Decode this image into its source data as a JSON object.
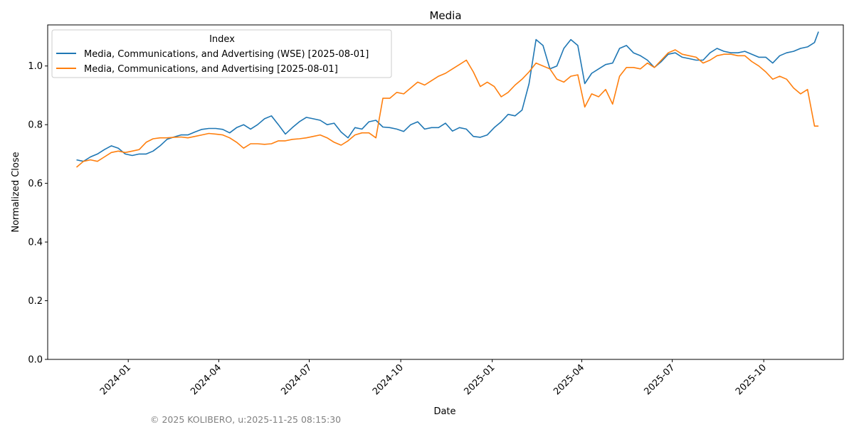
{
  "chart_data": {
    "type": "line",
    "title": "Media",
    "xlabel": "Date",
    "ylabel": "Normalized Close",
    "ylim": [
      0,
      1.14
    ],
    "xlim": [
      "2023-10-12",
      "2025-12-20"
    ],
    "grid": false,
    "legend": {
      "title": "Index",
      "placement": "top-left"
    },
    "yticks": [
      "0.0",
      "0.2",
      "0.4",
      "0.6",
      "0.8",
      "1.0"
    ],
    "xticks": [
      "2024-01",
      "2024-04",
      "2024-07",
      "2024-10",
      "2025-01",
      "2025-04",
      "2025-07",
      "2025-10"
    ],
    "x": [
      "2023-11-10",
      "2023-11-17",
      "2023-11-24",
      "2023-12-01",
      "2023-12-08",
      "2023-12-15",
      "2023-12-22",
      "2023-12-29",
      "2024-01-05",
      "2024-01-12",
      "2024-01-19",
      "2024-01-26",
      "2024-02-02",
      "2024-02-09",
      "2024-02-16",
      "2024-02-23",
      "2024-03-01",
      "2024-03-08",
      "2024-03-15",
      "2024-03-22",
      "2024-03-29",
      "2024-04-05",
      "2024-04-12",
      "2024-04-19",
      "2024-04-26",
      "2024-05-03",
      "2024-05-10",
      "2024-05-17",
      "2024-05-24",
      "2024-05-31",
      "2024-06-07",
      "2024-06-14",
      "2024-06-21",
      "2024-06-28",
      "2024-07-05",
      "2024-07-12",
      "2024-07-19",
      "2024-07-26",
      "2024-08-02",
      "2024-08-09",
      "2024-08-16",
      "2024-08-23",
      "2024-08-30",
      "2024-09-06",
      "2024-09-13",
      "2024-09-20",
      "2024-09-27",
      "2024-10-04",
      "2024-10-11",
      "2024-10-18",
      "2024-10-25",
      "2024-11-01",
      "2024-11-08",
      "2024-11-15",
      "2024-11-22",
      "2024-11-29",
      "2024-12-06",
      "2024-12-13",
      "2024-12-20",
      "2024-12-27",
      "2025-01-03",
      "2025-01-10",
      "2025-01-17",
      "2025-01-24",
      "2025-01-31",
      "2025-02-07",
      "2025-02-14",
      "2025-02-21",
      "2025-02-28",
      "2025-03-07",
      "2025-03-14",
      "2025-03-21",
      "2025-03-28",
      "2025-04-04",
      "2025-04-11",
      "2025-04-18",
      "2025-04-25",
      "2025-05-02",
      "2025-05-09",
      "2025-05-16",
      "2025-05-23",
      "2025-05-30",
      "2025-06-06",
      "2025-06-13",
      "2025-06-20",
      "2025-06-27",
      "2025-07-04",
      "2025-07-11",
      "2025-07-18",
      "2025-07-25",
      "2025-08-01",
      "2025-08-08",
      "2025-08-15",
      "2025-08-22",
      "2025-08-29",
      "2025-09-05",
      "2025-09-12",
      "2025-09-19",
      "2025-09-26",
      "2025-10-03",
      "2025-10-10",
      "2025-10-17",
      "2025-10-24",
      "2025-10-31",
      "2025-11-07",
      "2025-11-14",
      "2025-11-21",
      "2025-11-25"
    ],
    "series": [
      {
        "name": "Media, Communications, and Advertising (WSE) [2025-08-01]",
        "color": "#1f77b4",
        "values": [
          0.68,
          0.675,
          0.69,
          0.7,
          0.715,
          0.728,
          0.72,
          0.7,
          0.695,
          0.7,
          0.7,
          0.71,
          0.728,
          0.75,
          0.758,
          0.765,
          0.765,
          0.775,
          0.784,
          0.787,
          0.787,
          0.784,
          0.772,
          0.79,
          0.8,
          0.785,
          0.8,
          0.82,
          0.83,
          0.8,
          0.768,
          0.79,
          0.81,
          0.825,
          0.82,
          0.815,
          0.8,
          0.805,
          0.775,
          0.755,
          0.79,
          0.785,
          0.81,
          0.815,
          0.792,
          0.79,
          0.785,
          0.777,
          0.8,
          0.81,
          0.785,
          0.79,
          0.79,
          0.805,
          0.778,
          0.79,
          0.785,
          0.76,
          0.757,
          0.765,
          0.79,
          0.81,
          0.835,
          0.83,
          0.85,
          0.94,
          1.09,
          1.07,
          0.99,
          1.0,
          1.06,
          1.09,
          1.07,
          0.94,
          0.975,
          0.99,
          1.005,
          1.01,
          1.06,
          1.07,
          1.045,
          1.035,
          1.02,
          0.995,
          1.015,
          1.04,
          1.045,
          1.03,
          1.025,
          1.02,
          1.02,
          1.045,
          1.06,
          1.05,
          1.045,
          1.045,
          1.05,
          1.04,
          1.03,
          1.03,
          1.01,
          1.035,
          1.045,
          1.05,
          1.06,
          1.065,
          1.08,
          1.117
        ]
      },
      {
        "name": "Media, Communications, and Advertising [2025-08-01]",
        "color": "#ff7f0e",
        "values": [
          0.655,
          0.675,
          0.68,
          0.675,
          0.69,
          0.705,
          0.71,
          0.705,
          0.71,
          0.715,
          0.74,
          0.752,
          0.755,
          0.755,
          0.757,
          0.758,
          0.755,
          0.76,
          0.765,
          0.77,
          0.768,
          0.765,
          0.755,
          0.74,
          0.72,
          0.735,
          0.735,
          0.733,
          0.735,
          0.745,
          0.745,
          0.75,
          0.752,
          0.755,
          0.76,
          0.765,
          0.755,
          0.74,
          0.73,
          0.745,
          0.765,
          0.772,
          0.772,
          0.755,
          0.89,
          0.89,
          0.91,
          0.905,
          0.925,
          0.945,
          0.935,
          0.95,
          0.965,
          0.975,
          0.99,
          1.005,
          1.02,
          0.98,
          0.93,
          0.945,
          0.93,
          0.895,
          0.91,
          0.935,
          0.955,
          0.98,
          1.01,
          1.0,
          0.99,
          0.955,
          0.945,
          0.965,
          0.97,
          0.86,
          0.905,
          0.895,
          0.92,
          0.87,
          0.965,
          0.995,
          0.995,
          0.99,
          1.01,
          0.995,
          1.02,
          1.045,
          1.055,
          1.04,
          1.035,
          1.03,
          1.01,
          1.02,
          1.035,
          1.04,
          1.04,
          1.035,
          1.035,
          1.015,
          1.0,
          0.98,
          0.955,
          0.965,
          0.955,
          0.925,
          0.905,
          0.92,
          0.795,
          0.795
        ]
      }
    ]
  },
  "footer": "© 2025 KOLIBERO, u:2025-11-25 08:15:30"
}
